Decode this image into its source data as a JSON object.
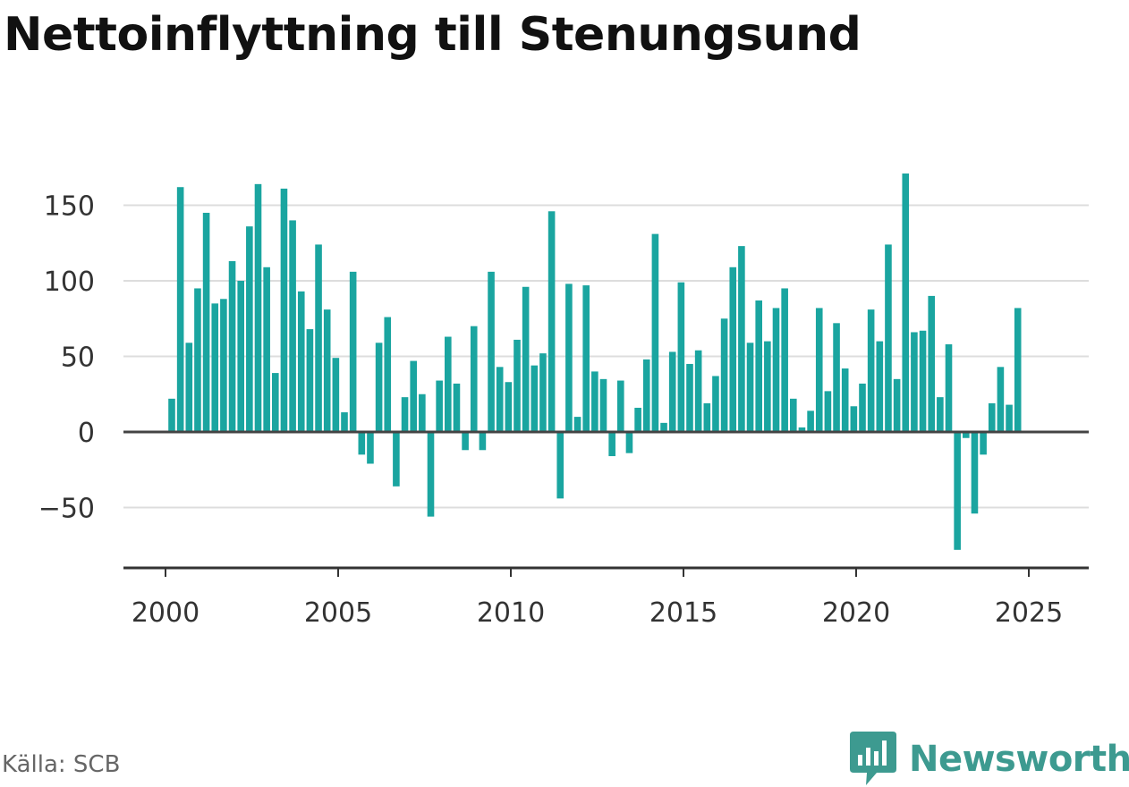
{
  "title": "Nettoinflyttning till Stenungsund",
  "source": "Källa: SCB",
  "brand": {
    "name": "Newsworthy",
    "icon": "newsworthy-logo-icon"
  },
  "colors": {
    "bar": "#1aa5a0",
    "zero_line": "#444444",
    "grid": "#dddddd",
    "axis": "#333333"
  },
  "chart_data": {
    "type": "bar",
    "title": "Nettoinflyttning till Stenungsund",
    "xlabel": "",
    "ylabel": "",
    "ylim": [
      -90,
      175
    ],
    "xlim": [
      1997.5,
      2026.2
    ],
    "grid": true,
    "y_ticks": [
      -50,
      0,
      50,
      100,
      150
    ],
    "y_tick_labels": [
      "−50",
      "0",
      "50",
      "100",
      "150"
    ],
    "x_ticks": [
      2000,
      2005,
      2010,
      2015,
      2020,
      2025
    ],
    "x_tick_labels": [
      "2000",
      "2005",
      "2010",
      "2015",
      "2020",
      "2025"
    ],
    "frequency": "quarterly",
    "start": "2000 Q1",
    "series": [
      {
        "values": [
          22,
          162,
          59,
          95,
          145,
          85,
          88,
          113,
          100,
          136,
          164,
          109,
          39,
          161,
          140,
          93,
          68,
          124,
          81,
          49,
          13,
          106,
          -15,
          -21,
          59,
          76,
          -36,
          23,
          47,
          25,
          -56,
          34,
          63,
          32,
          -12,
          70,
          -12,
          106,
          43,
          33,
          61,
          96,
          44,
          52,
          146,
          -44,
          98,
          10,
          97,
          40,
          35,
          -16,
          34,
          -14,
          16,
          48,
          131,
          6,
          53,
          99,
          45,
          54,
          19,
          37,
          75,
          109,
          123,
          59,
          87,
          60,
          82,
          95,
          22,
          3,
          14,
          82,
          27,
          72,
          42,
          17,
          32,
          81,
          60,
          124,
          35,
          171,
          66,
          67,
          90,
          23,
          58,
          -78,
          -4,
          -54,
          -15,
          19,
          43,
          18,
          82
        ]
      }
    ]
  }
}
